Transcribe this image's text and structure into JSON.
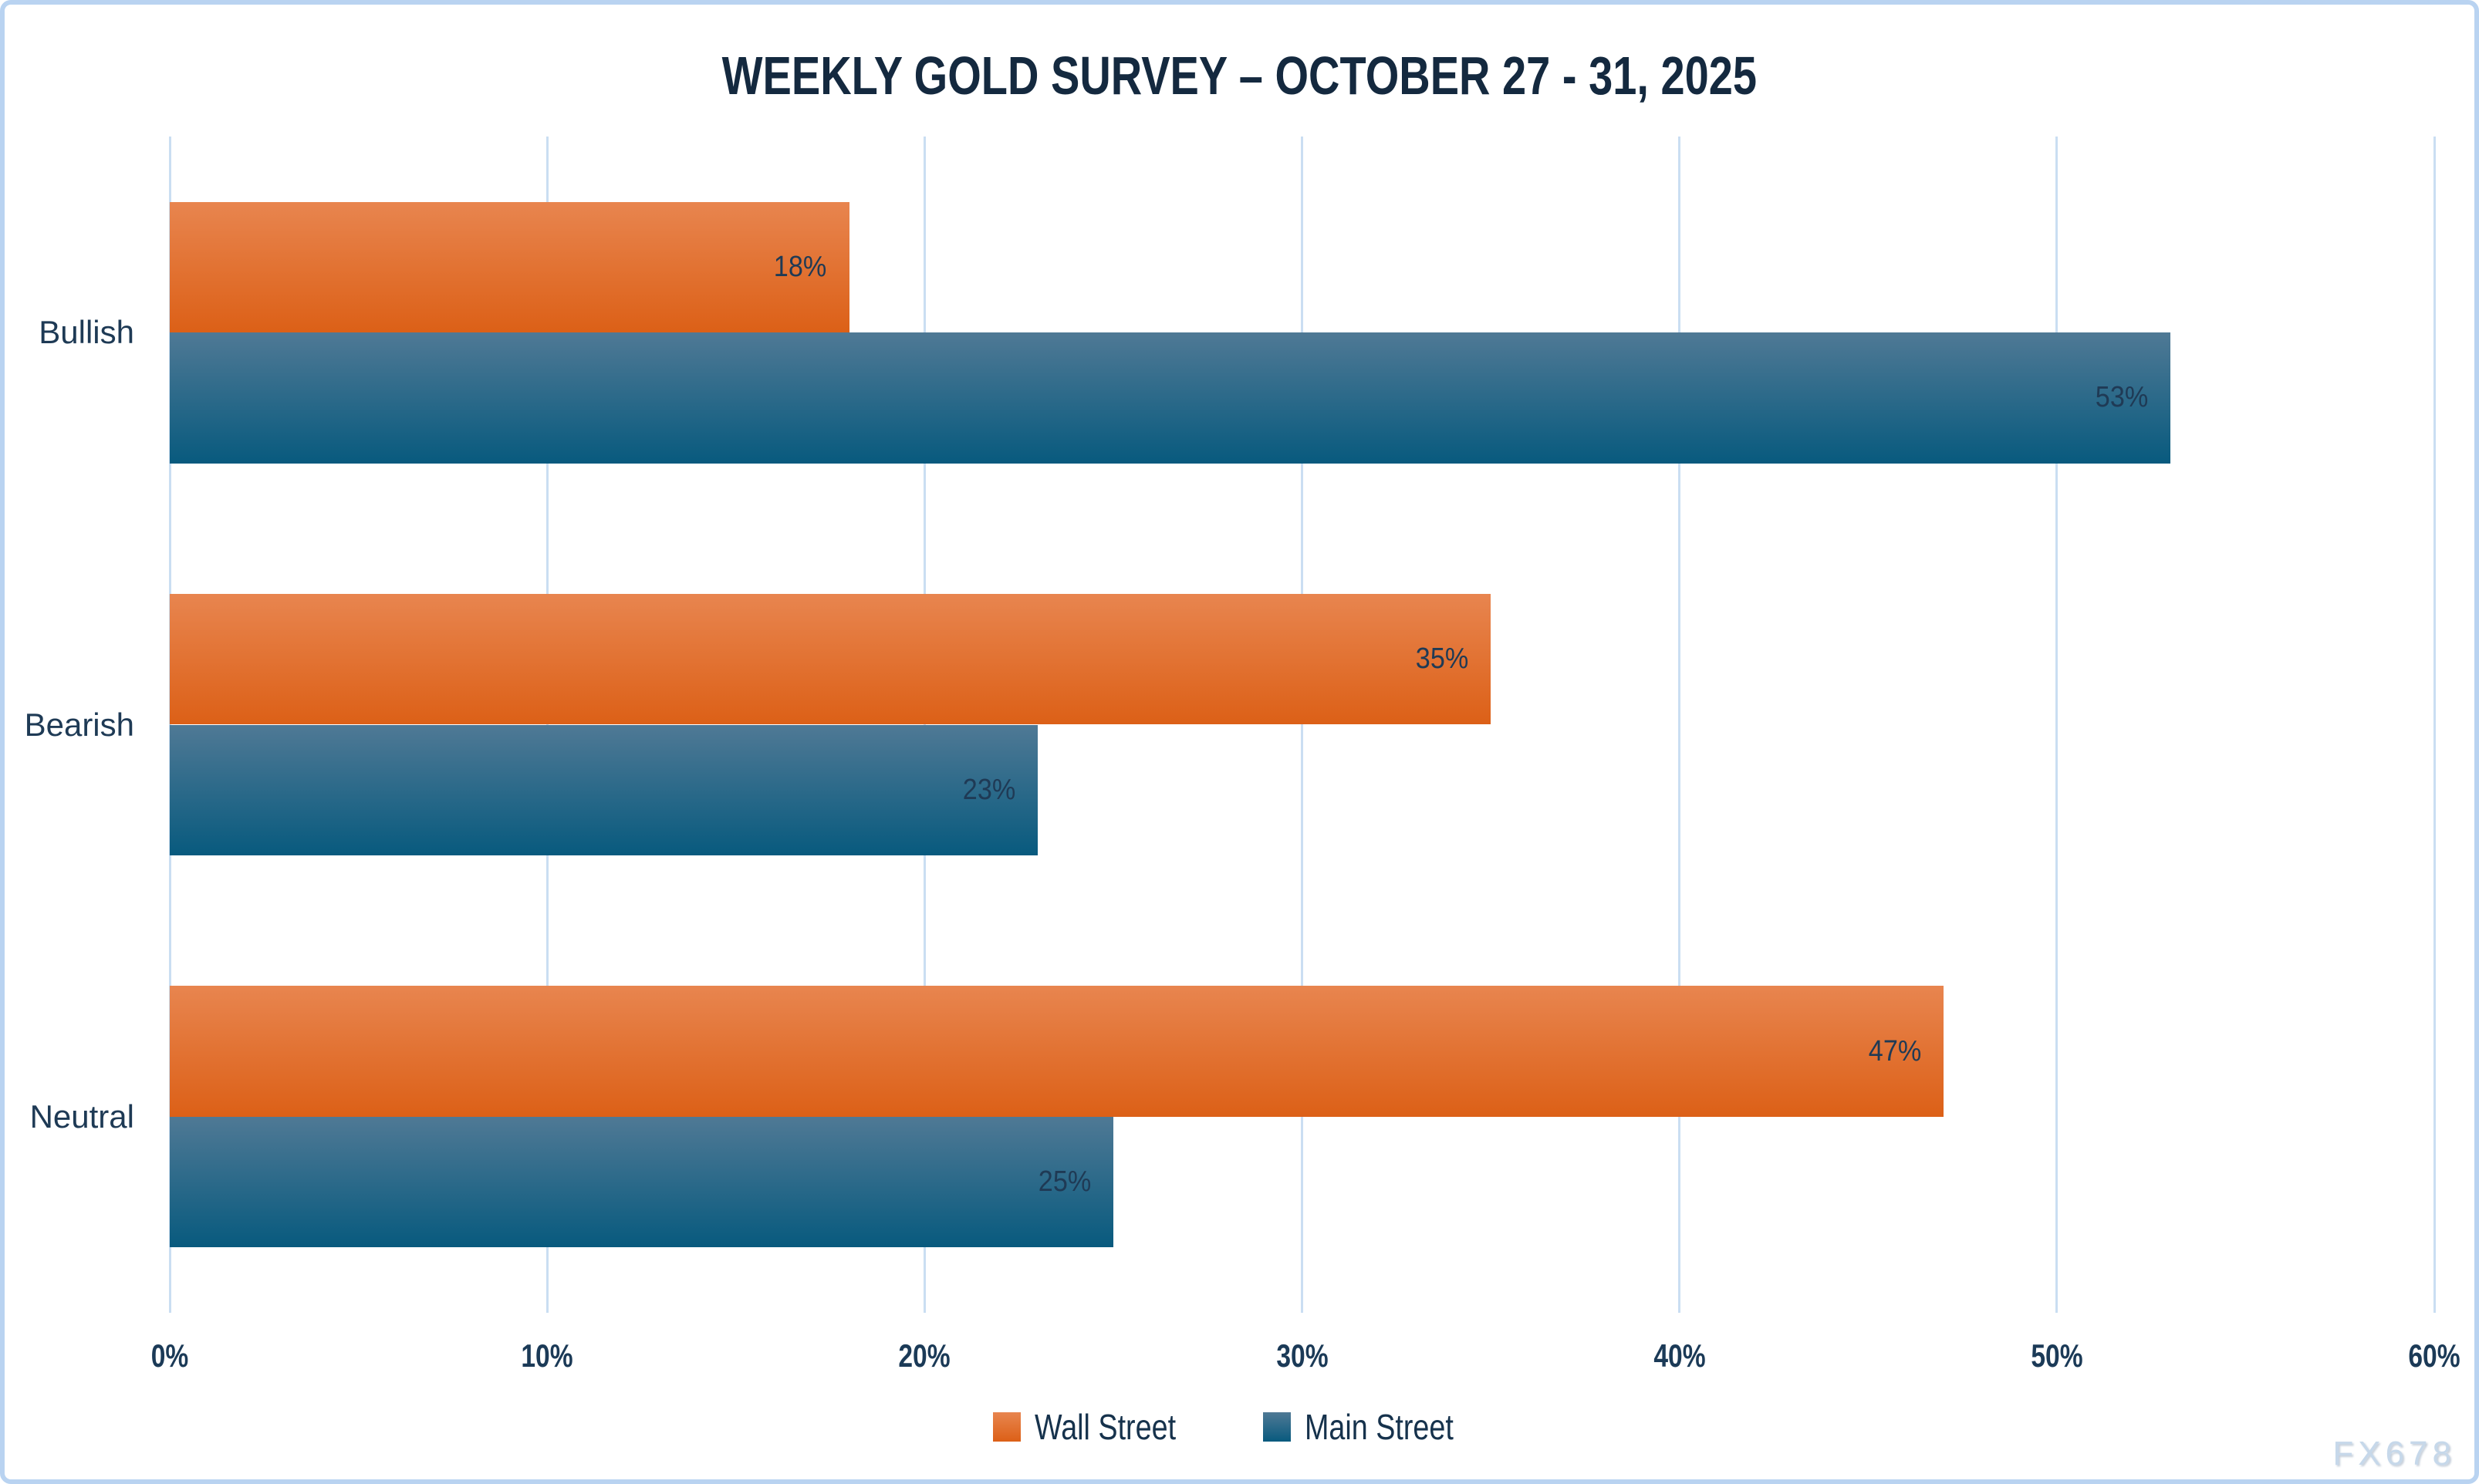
{
  "watermark": "FX678",
  "colors": {
    "frame_border": "#B9D3F1",
    "gridline": "#CADEF2",
    "title_text": "#14293F",
    "axis_text": "#1B3A57",
    "category_text": "#1E3A55",
    "data_label_text": "#1F3A55",
    "legend_text": "#16324C",
    "watermark_text": "#C6D8EA"
  },
  "chart_data": {
    "type": "bar",
    "orientation": "horizontal",
    "title": "WEEKLY GOLD SURVEY – OCTOBER 27 - 31, 2025",
    "categories": [
      "Bullish",
      "Bearish",
      "Neutral"
    ],
    "series": [
      {
        "name": "Wall Street",
        "values": [
          18,
          35,
          47
        ],
        "gradient_top": "#E8854F",
        "gradient_bottom": "#DC6017"
      },
      {
        "name": "Main Street",
        "values": [
          53,
          23,
          25
        ],
        "gradient_top": "#4F7995",
        "gradient_bottom": "#085A7E"
      }
    ],
    "value_suffix": "%",
    "x_ticks": [
      "0%",
      "10%",
      "20%",
      "30%",
      "40%",
      "50%",
      "60%"
    ],
    "xlim": [
      0,
      60
    ],
    "grid": true,
    "legend_position": "bottom"
  }
}
